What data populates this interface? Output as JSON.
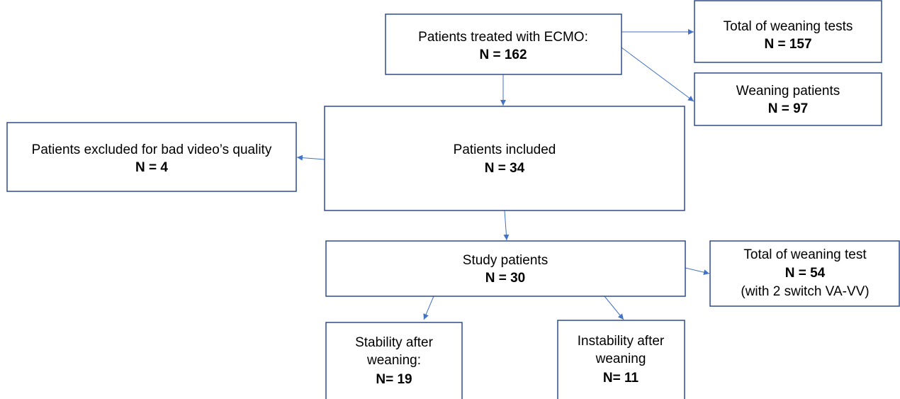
{
  "nodes": [
    {
      "label": [
        "Patients treated with ECMO:"
      ],
      "count": "N = 162"
    },
    {
      "label": [
        "Total of weaning tests"
      ],
      "count": "N = 157"
    },
    {
      "label": [
        "Weaning patients"
      ],
      "count": "N = 97"
    },
    {
      "label": [
        "Patients included"
      ],
      "count": "N = 34"
    },
    {
      "label": [
        "Patients excluded for bad video’s quality"
      ],
      "count": "N = 4"
    },
    {
      "label": [
        "Study patients"
      ],
      "count": "N = 30"
    },
    {
      "label": [
        "Total of weaning test"
      ],
      "count": "N = 54",
      "note": "(with 2 switch VA-VV)"
    },
    {
      "label": [
        "Stability after",
        "weaning:"
      ],
      "count": "N= 19"
    },
    {
      "label": [
        "Instability after",
        "weaning"
      ],
      "count": "N= 11"
    }
  ]
}
